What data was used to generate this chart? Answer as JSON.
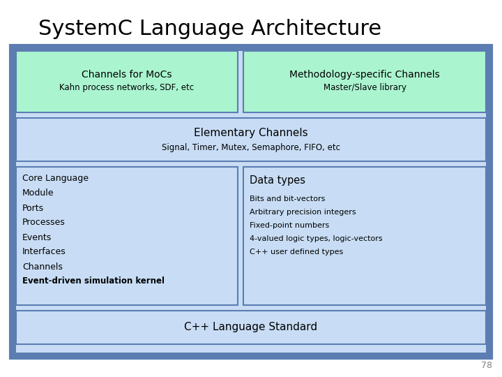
{
  "title": "SystemC Language Architecture",
  "title_fontsize": 22,
  "bg_outer": "#5b7db1",
  "bg_light_blue": "#c8ddf5",
  "bg_green": "#aaf5d0",
  "page_bg": "#ffffff",
  "page_num": "78",
  "box1_title": "Channels for MoCs",
  "box1_sub": "Kahn process networks, SDF, etc",
  "box2_title": "Methodology-specific Channels",
  "box2_sub": "Master/Slave library",
  "elem_title": "Elementary Channels",
  "elem_sub": "Signal, Timer, Mutex, Semaphore, FIFO, etc",
  "core_lines": [
    [
      "Core Language",
      false
    ],
    [
      "Module",
      false
    ],
    [
      "Ports",
      false
    ],
    [
      "Processes",
      false
    ],
    [
      "Events",
      false
    ],
    [
      "Interfaces",
      false
    ],
    [
      "Channels",
      false
    ],
    [
      "Event-driven simulation kernel",
      true
    ]
  ],
  "data_title": "Data types",
  "data_lines": [
    "Bits and bit-vectors",
    "Arbitrary precision integers",
    "Fixed-point numbers",
    "4-valued logic types, logic-vectors",
    "C++ user defined types"
  ],
  "bottom_label": "C++ Language Standard"
}
